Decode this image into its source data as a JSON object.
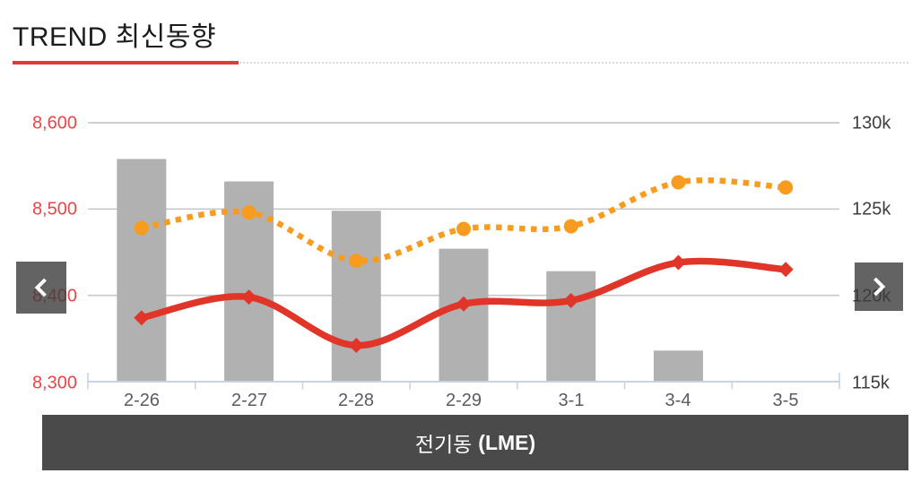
{
  "header": {
    "title": "TREND 최신동향",
    "accent_color": "#dc3a3c"
  },
  "nav": {
    "prev_icon": "chevron-left",
    "next_icon": "chevron-right"
  },
  "footer": {
    "market_ko": "전기동",
    "market_en": "(LME)"
  },
  "chart_data": {
    "type": "combo-bar-line",
    "title": "전기동 (LME)",
    "categories": [
      "2-26",
      "2-27",
      "2-28",
      "2-29",
      "3-1",
      "3-4",
      "3-5"
    ],
    "series": [
      {
        "name": "gray-bars",
        "type": "bar",
        "axis": "right",
        "color": "#b1b1b1",
        "values": [
          127.9,
          126.6,
          124.9,
          122.7,
          121.4,
          116.8,
          null
        ]
      },
      {
        "name": "orange-dotted-line",
        "type": "line",
        "dash": "dotted",
        "marker": "circle",
        "axis": "left",
        "color": "#f89c1f",
        "values": [
          8478,
          8496,
          8440,
          8477,
          8480,
          8531,
          8525
        ]
      },
      {
        "name": "red-solid-line",
        "type": "line",
        "dash": "solid",
        "marker": "diamond",
        "axis": "left",
        "color": "#e03528",
        "values": [
          8374,
          8398,
          8342,
          8390,
          8394,
          8438,
          8430
        ]
      }
    ],
    "left_axis": {
      "min": 8300,
      "max": 8600,
      "ticks": [
        "8,600",
        "8,500",
        "8,400",
        "8,300"
      ],
      "tick_values": [
        8600,
        8500,
        8400,
        8300
      ],
      "color": "#ef4348"
    },
    "right_axis": {
      "min": 115,
      "max": 130,
      "ticks": [
        "130k",
        "125k",
        "120k",
        "115k"
      ],
      "tick_values": [
        130,
        125,
        120,
        115
      ]
    },
    "grid": true,
    "legend": "none"
  }
}
